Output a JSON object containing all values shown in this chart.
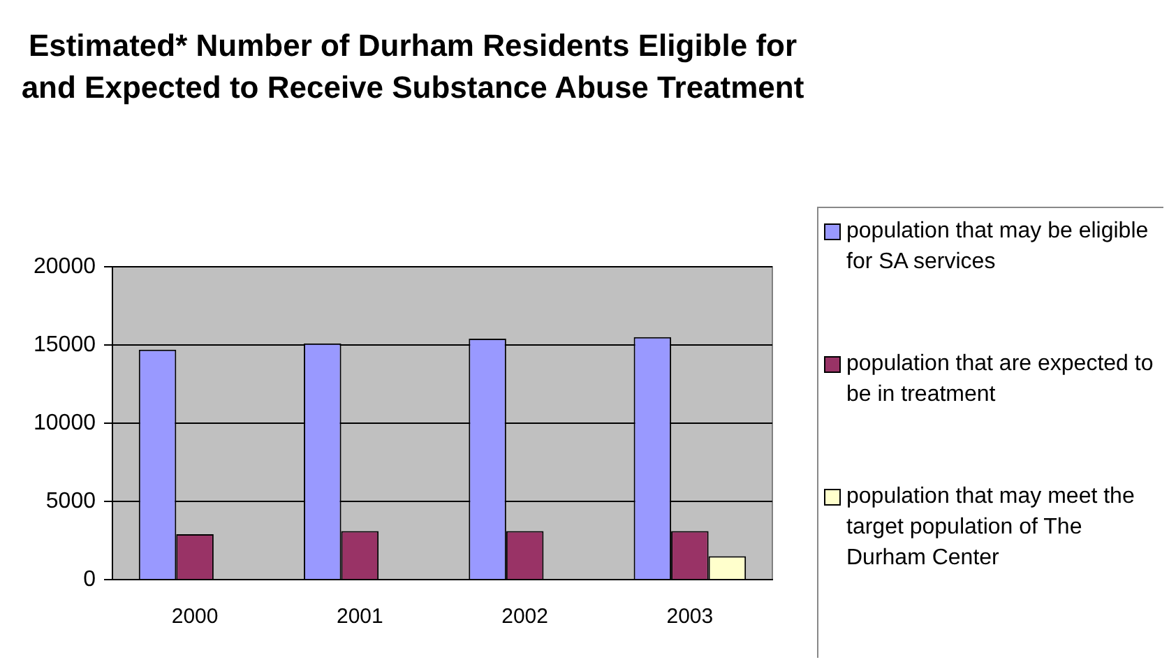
{
  "chart_data": {
    "type": "bar",
    "title": "Estimated* Number of Durham Residents Eligible for and Expected to Receive Substance Abuse Treatment",
    "categories": [
      "2000",
      "2001",
      "2002",
      "2003"
    ],
    "series": [
      {
        "name": "population that may be eligible for SA services",
        "color": "#9999ff",
        "values": [
          14700,
          15100,
          15400,
          15500
        ]
      },
      {
        "name": "population that are expected to be in treatment",
        "color": "#993366",
        "values": [
          2900,
          3100,
          3100,
          3100
        ]
      },
      {
        "name": "population that may meet the  target population of The Durham Center",
        "color": "#ffffcc",
        "values": [
          null,
          null,
          null,
          1500
        ]
      }
    ],
    "ylim": [
      0,
      20000
    ],
    "yticks": [
      0,
      5000,
      10000,
      15000,
      20000
    ],
    "grid": "y",
    "legend": "right"
  }
}
